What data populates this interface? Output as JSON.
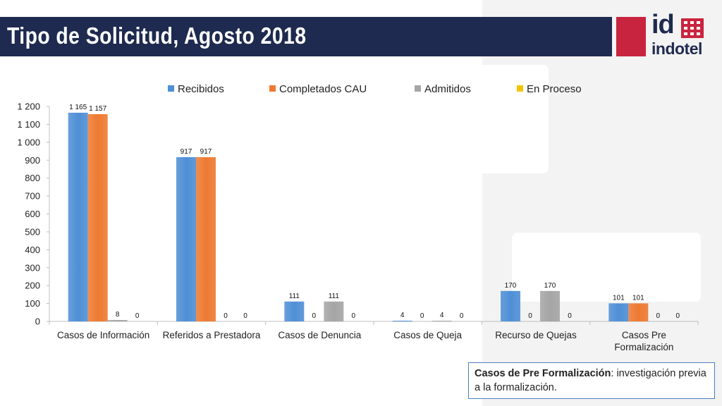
{
  "header": {
    "title": "Tipo de Solicitud, Agosto 2018"
  },
  "logo": {
    "mark": "id",
    "wordmark": "indotel",
    "red_color": "#c9243f",
    "navy_color": "#1e2a4f"
  },
  "note": {
    "term": "Casos de Pre Formalización",
    "definition": ": investigación previa a la formalización."
  },
  "chart_data": {
    "type": "bar",
    "categories": [
      [
        "Casos de Información"
      ],
      [
        "Referidos a Prestadora"
      ],
      [
        "Casos de Denuncia"
      ],
      [
        "Casos de Queja"
      ],
      [
        "Recurso de Quejas"
      ],
      [
        "Casos Pre",
        "Formalización"
      ]
    ],
    "series": [
      {
        "name": "Recibidos",
        "color": "#4f8fd6",
        "values": [
          1165,
          917,
          111,
          4,
          170,
          101
        ],
        "labels": [
          "1 165",
          "917",
          "111",
          "4",
          "170",
          "101"
        ]
      },
      {
        "name": "Completados CAU",
        "color": "#ee7a32",
        "values": [
          1157,
          917,
          0,
          0,
          0,
          101
        ],
        "labels": [
          "1 157",
          "917",
          "0",
          "0",
          "0",
          "101"
        ]
      },
      {
        "name": "Admitidos",
        "color": "#a5a5a5",
        "values": [
          8,
          0,
          111,
          4,
          170,
          0
        ],
        "labels": [
          "8",
          "0",
          "111",
          "4",
          "170",
          "0"
        ]
      },
      {
        "name": "En Proceso",
        "color": "#f5c400",
        "values": [
          0,
          0,
          0,
          0,
          0,
          0
        ],
        "labels": [
          "0",
          "0",
          "0",
          "0",
          "0",
          "0"
        ]
      }
    ],
    "y_ticks": [
      "0",
      "100",
      "200",
      "300",
      "400",
      "500",
      "600",
      "700",
      "800",
      "900",
      "1 000",
      "1 100",
      "1 200"
    ],
    "ylim": [
      0,
      1200
    ],
    "ystep": 100,
    "grid": false,
    "legend_position": "top"
  }
}
